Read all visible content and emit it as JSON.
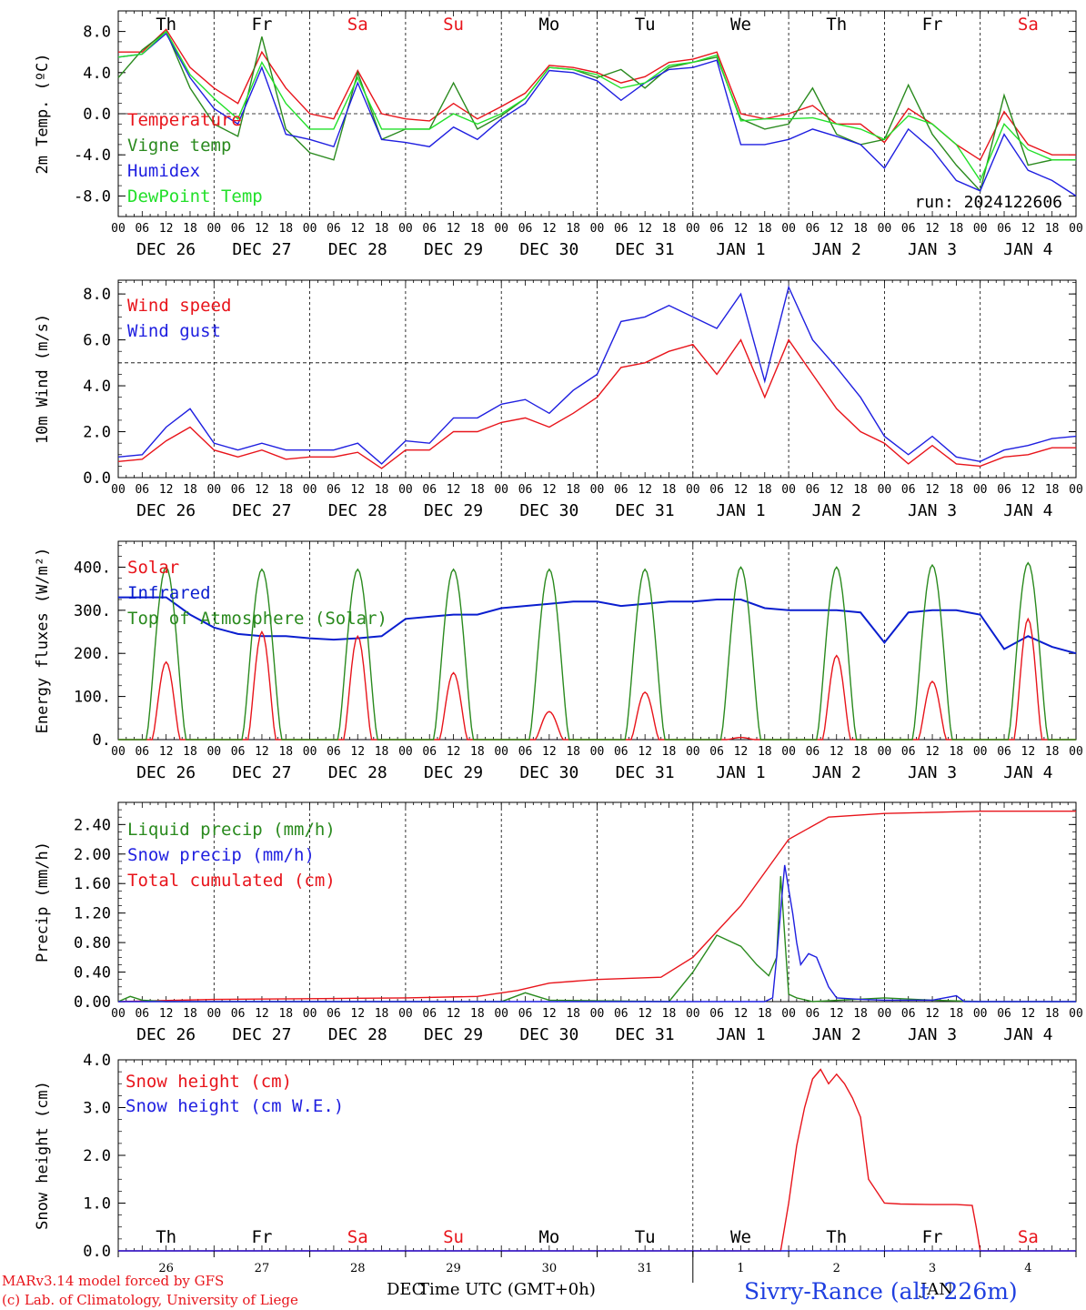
{
  "colors": {
    "red": "#e8141b",
    "darkgreen": "#2a8a1e",
    "blue": "#1f1fe0",
    "lightgreen": "#22e02a",
    "navy": "#0a1ecf",
    "black": "#000000"
  },
  "days": {
    "names": [
      "Th",
      "Fr",
      "Sa",
      "Su",
      "Mo",
      "Tu",
      "We",
      "Th",
      "Fr",
      "Sa"
    ],
    "name_colors": [
      "black",
      "black",
      "red",
      "red",
      "black",
      "black",
      "black",
      "black",
      "black",
      "red"
    ],
    "date_labels": [
      "DEC 26",
      "DEC 27",
      "DEC 28",
      "DEC 29",
      "DEC 30",
      "DEC 31",
      "JAN  1",
      "JAN  2",
      "JAN  3",
      "JAN  4"
    ],
    "hour_ticks": [
      "00",
      "06",
      "12",
      "18"
    ],
    "bottom_numbers": [
      "26",
      "27",
      "28",
      "29",
      "30",
      "31",
      "1",
      "2",
      "3",
      "4"
    ]
  },
  "chart_data": [
    {
      "type": "line",
      "ylabel": "2m Temp. (ºC)",
      "ylim": [
        -10,
        10
      ],
      "yticks": [
        "-8.0",
        "-4.0",
        "0.0",
        "4.0",
        "8.0"
      ],
      "ytick_values": [
        -8,
        -4,
        0,
        4,
        8
      ],
      "hline": 0,
      "legend": [
        "Temperature",
        "Vigne temp",
        "Humidex",
        "DewPoint Temp"
      ],
      "annotation": "run: 2024122606",
      "x_hours": [
        0,
        6,
        12,
        18,
        24,
        30,
        36,
        42,
        48,
        54,
        60,
        66,
        72,
        78,
        84,
        90,
        96,
        102,
        108,
        114,
        120,
        126,
        132,
        138,
        144,
        150,
        156,
        162,
        168,
        174,
        180,
        186,
        192,
        198,
        204,
        210,
        216,
        222,
        228,
        234,
        240
      ],
      "series": [
        {
          "name": "Temperature",
          "color": "red",
          "values": [
            6.0,
            6.0,
            8.2,
            4.5,
            2.5,
            1.0,
            6.0,
            2.5,
            0.0,
            -0.5,
            4.2,
            0.0,
            -0.5,
            -0.7,
            1.0,
            -0.5,
            0.7,
            2.0,
            4.7,
            4.5,
            4.0,
            3.0,
            3.6,
            5.0,
            5.3,
            6.0,
            0.0,
            -0.5,
            0.0,
            0.8,
            -1.0,
            -1.0,
            -2.8,
            0.5,
            -1.0,
            -3.0,
            -4.5,
            0.2,
            -3.0,
            -4.0,
            -4.0
          ]
        },
        {
          "name": "Vigne temp",
          "color": "darkgreen",
          "values": [
            3.5,
            6.2,
            8.0,
            2.5,
            -1.0,
            -2.2,
            7.5,
            -1.5,
            -3.8,
            -4.5,
            4.0,
            -2.5,
            -1.5,
            -1.5,
            3.0,
            -1.5,
            -0.2,
            1.5,
            4.5,
            4.3,
            3.5,
            4.3,
            2.5,
            4.5,
            5.0,
            5.5,
            -0.5,
            -1.5,
            -1.0,
            2.5,
            -2.0,
            -3.0,
            -2.5,
            2.8,
            -2.0,
            -5.0,
            -7.5,
            1.8,
            -5.0,
            -4.5,
            -4.5
          ]
        },
        {
          "name": "Humidex",
          "color": "blue",
          "values": [
            5.5,
            5.8,
            7.8,
            3.5,
            0.5,
            -1.0,
            4.5,
            -2.0,
            -2.5,
            -3.2,
            3.0,
            -2.5,
            -2.8,
            -3.2,
            -1.3,
            -2.5,
            -0.5,
            1.0,
            4.2,
            4.0,
            3.2,
            1.3,
            3.0,
            4.3,
            4.5,
            5.2,
            -3.0,
            -3.0,
            -2.5,
            -1.5,
            -2.2,
            -3.0,
            -5.3,
            -1.5,
            -3.5,
            -6.5,
            -7.5,
            -2.0,
            -5.5,
            -6.5,
            -8.0
          ]
        },
        {
          "name": "DewPoint Temp",
          "color": "lightgreen",
          "values": [
            5.5,
            5.8,
            8.0,
            3.8,
            1.5,
            -0.5,
            5.0,
            1.0,
            -1.5,
            -1.5,
            3.5,
            -1.5,
            -1.5,
            -1.5,
            0.0,
            -1.0,
            0.0,
            1.5,
            4.5,
            4.3,
            3.8,
            2.5,
            3.0,
            4.7,
            5.0,
            5.7,
            -0.7,
            -0.5,
            -0.5,
            -0.4,
            -1.0,
            -1.5,
            -2.5,
            -0.2,
            -1.0,
            -3.0,
            -6.5,
            -1.0,
            -3.5,
            -4.5,
            -4.5
          ]
        }
      ]
    },
    {
      "type": "line",
      "ylabel": "10m Wind (m/s)",
      "ylim": [
        0,
        8.6
      ],
      "yticks": [
        "0.0",
        "2.0",
        "4.0",
        "6.0",
        "8.0"
      ],
      "ytick_values": [
        0,
        2,
        4,
        6,
        8
      ],
      "hline": 5,
      "legend": [
        "Wind speed",
        "Wind gust"
      ],
      "x_hours": [
        0,
        6,
        12,
        18,
        24,
        30,
        36,
        42,
        48,
        54,
        60,
        66,
        72,
        78,
        84,
        90,
        96,
        102,
        108,
        114,
        120,
        126,
        132,
        138,
        144,
        150,
        156,
        162,
        168,
        174,
        180,
        186,
        192,
        198,
        204,
        210,
        216,
        222,
        228,
        234,
        240
      ],
      "series": [
        {
          "name": "Wind speed",
          "color": "red",
          "values": [
            0.7,
            0.8,
            1.6,
            2.2,
            1.2,
            0.9,
            1.2,
            0.8,
            0.9,
            0.9,
            1.1,
            0.4,
            1.2,
            1.2,
            2.0,
            2.0,
            2.4,
            2.6,
            2.2,
            2.8,
            3.5,
            4.8,
            5.0,
            5.5,
            5.8,
            4.5,
            6.0,
            3.5,
            6.0,
            4.5,
            3.0,
            2.0,
            1.5,
            0.6,
            1.4,
            0.6,
            0.5,
            0.9,
            1.0,
            1.3,
            1.3
          ]
        },
        {
          "name": "Wind gust",
          "color": "blue",
          "values": [
            0.9,
            1.0,
            2.2,
            3.0,
            1.5,
            1.2,
            1.5,
            1.2,
            1.2,
            1.2,
            1.5,
            0.6,
            1.6,
            1.5,
            2.6,
            2.6,
            3.2,
            3.4,
            2.8,
            3.8,
            4.5,
            6.8,
            7.0,
            7.5,
            7.0,
            6.5,
            8.0,
            4.2,
            8.3,
            6.0,
            4.8,
            3.5,
            1.8,
            1.0,
            1.8,
            0.9,
            0.7,
            1.2,
            1.4,
            1.7,
            1.8
          ]
        }
      ]
    },
    {
      "type": "line",
      "ylabel": "Energy fluxes (W/m²)",
      "ylim": [
        0,
        460
      ],
      "yticks": [
        "0.",
        "100.",
        "200.",
        "300.",
        "400."
      ],
      "ytick_values": [
        0,
        100,
        200,
        300,
        400
      ],
      "legend": [
        "Solar",
        "Infrared",
        "Top of Atmosphere (Solar)"
      ],
      "x_hours": [
        0,
        6,
        12,
        18,
        24,
        30,
        36,
        42,
        48,
        54,
        60,
        66,
        72,
        78,
        84,
        90,
        96,
        102,
        108,
        114,
        120,
        126,
        132,
        138,
        144,
        150,
        156,
        162,
        168,
        174,
        180,
        186,
        192,
        198,
        204,
        210,
        216,
        222,
        228,
        234,
        240
      ],
      "series": [
        {
          "name": "Infrared",
          "color": "navy",
          "values": [
            330,
            330,
            330,
            290,
            260,
            245,
            240,
            240,
            235,
            232,
            235,
            240,
            280,
            285,
            290,
            290,
            305,
            310,
            315,
            320,
            320,
            310,
            315,
            320,
            320,
            325,
            325,
            305,
            300,
            300,
            300,
            295,
            225,
            295,
            300,
            300,
            290,
            210,
            240,
            215,
            200
          ]
        },
        {
          "name": "Solar",
          "color": "red",
          "day_peaks": [
            180,
            250,
            240,
            155,
            65,
            110,
            5,
            195,
            135,
            280
          ]
        },
        {
          "name": "Top of Atmosphere (Solar)",
          "color": "darkgreen",
          "day_peaks": [
            400,
            395,
            395,
            395,
            395,
            395,
            400,
            400,
            405,
            410
          ]
        }
      ]
    },
    {
      "type": "line",
      "ylabel": "Precip (mm/h)",
      "ylim": [
        0,
        2.7
      ],
      "yticks": [
        "0.00",
        "0.40",
        "0.80",
        "1.20",
        "1.60",
        "2.00",
        "2.40"
      ],
      "ytick_values": [
        0,
        0.4,
        0.8,
        1.2,
        1.6,
        2.0,
        2.4
      ],
      "legend": [
        "Liquid precip (mm/h)",
        "Snow precip (mm/h)",
        "Total cumulated (cm)"
      ],
      "series": [
        {
          "name": "Total cumulated (cm)",
          "color": "red",
          "x_hours": [
            0,
            24,
            48,
            72,
            90,
            100,
            108,
            120,
            136,
            144,
            156,
            168,
            178,
            192,
            216,
            240
          ],
          "values": [
            0.0,
            0.03,
            0.04,
            0.05,
            0.07,
            0.15,
            0.25,
            0.3,
            0.33,
            0.6,
            1.3,
            2.2,
            2.5,
            2.55,
            2.58,
            2.58
          ]
        },
        {
          "name": "Liquid precip (mm/h)",
          "color": "darkgreen",
          "x_hours": [
            0,
            3,
            6,
            12,
            96,
            102,
            108,
            138,
            144,
            150,
            156,
            160,
            163,
            165,
            166,
            168,
            170,
            174,
            192,
            204,
            216,
            240
          ],
          "values": [
            0,
            0.07,
            0.02,
            0,
            0,
            0.12,
            0.02,
            0,
            0.4,
            0.9,
            0.75,
            0.5,
            0.35,
            0.6,
            1.7,
            0.1,
            0.05,
            0,
            0.05,
            0.02,
            0,
            0
          ]
        },
        {
          "name": "Snow precip (mm/h)",
          "color": "blue",
          "x_hours": [
            0,
            162,
            164,
            165,
            167,
            169,
            170,
            171,
            173,
            175,
            178,
            180,
            186,
            192,
            204,
            210,
            212,
            216,
            240
          ],
          "values": [
            0,
            0,
            0.05,
            0.6,
            1.85,
            1.2,
            0.8,
            0.5,
            0.65,
            0.6,
            0.2,
            0.05,
            0.03,
            0.02,
            0.02,
            0.08,
            0,
            0,
            0
          ]
        }
      ]
    },
    {
      "type": "line",
      "ylabel": "Snow height (cm)",
      "ylim": [
        0,
        4.0
      ],
      "yticks": [
        "0.0",
        "1.0",
        "2.0",
        "3.0",
        "4.0"
      ],
      "ytick_values": [
        0,
        1,
        2,
        3,
        4
      ],
      "legend": [
        "Snow height (cm)",
        "Snow height (cm W.E.)"
      ],
      "series": [
        {
          "name": "Snow height (cm)",
          "color": "red",
          "x_hours": [
            0,
            166,
            168,
            170,
            172,
            174,
            176,
            178,
            180,
            182,
            184,
            186,
            188,
            192,
            196,
            204,
            210,
            214,
            215,
            216,
            240
          ],
          "values": [
            0,
            0,
            1.0,
            2.2,
            3.0,
            3.6,
            3.8,
            3.5,
            3.7,
            3.5,
            3.2,
            2.8,
            1.5,
            1.0,
            0.98,
            0.97,
            0.97,
            0.95,
            0.5,
            0,
            0
          ]
        },
        {
          "name": "Snow height (cm W.E.)",
          "color": "blue",
          "x_hours": [
            0,
            240
          ],
          "values": [
            0,
            0
          ]
        }
      ]
    }
  ],
  "footer": {
    "model_line": "MARv3.14 model forced by GFS",
    "lab_line": "(c) Lab. of Climatology, University of Liege",
    "month_left": "DEC",
    "axis_title": "Time UTC (GMT+0h)",
    "station": "Sivry-Rance (alt. 226m)",
    "month_right": "JAN"
  }
}
